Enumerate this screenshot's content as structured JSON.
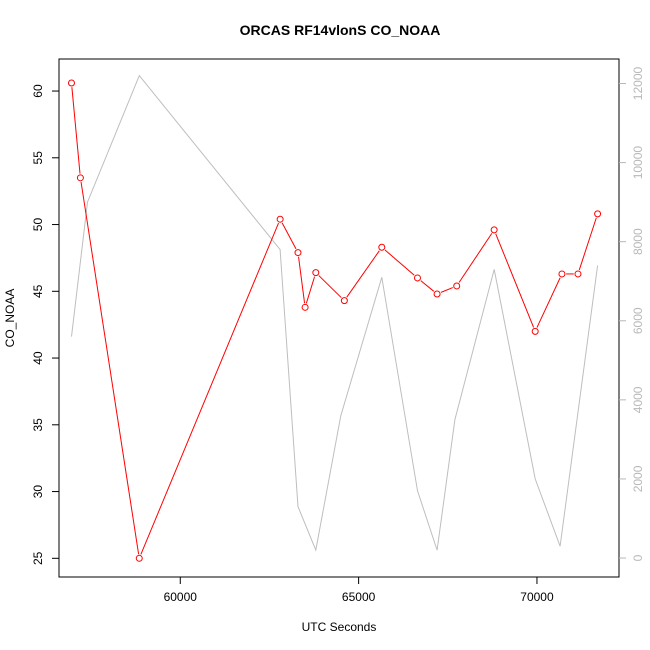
{
  "chart_data": {
    "type": "line",
    "title": "ORCAS RF14vlonS CO_NOAA",
    "xlabel": "UTC Seconds",
    "ylabel": "CO_NOAA",
    "xlim": [
      56600,
      72300
    ],
    "ylim": [
      23.6,
      62.4
    ],
    "y2lim": [
      -480,
      12620
    ],
    "x_ticks": [
      60000,
      65000,
      70000
    ],
    "y_ticks": [
      25,
      30,
      35,
      40,
      45,
      50,
      55,
      60
    ],
    "y2_ticks": [
      0,
      2000,
      4000,
      6000,
      8000,
      10000,
      12000
    ],
    "colors": {
      "primary": "#ff0000",
      "secondary": "#bebebe"
    },
    "series": [
      {
        "axis": "left",
        "style": "line-with-open-circles",
        "x": [
          56950,
          57200,
          58850,
          62800,
          63300,
          63500,
          63800,
          64600,
          65650,
          66650,
          67200,
          67750,
          68800,
          69950,
          70700,
          71150,
          71700
        ],
        "y": [
          60.6,
          53.5,
          25.0,
          50.4,
          47.9,
          43.8,
          46.4,
          44.3,
          48.3,
          46.0,
          44.8,
          45.4,
          49.6,
          42.0,
          46.3,
          46.3,
          50.8
        ]
      },
      {
        "axis": "right",
        "style": "line",
        "x": [
          56950,
          57400,
          58850,
          62800,
          63300,
          63800,
          64500,
          65650,
          66650,
          67200,
          67700,
          68800,
          69950,
          70650,
          71700
        ],
        "y": [
          5600,
          9000,
          12200,
          7800,
          1300,
          200,
          3600,
          7100,
          1700,
          200,
          3500,
          7300,
          2000,
          300,
          7400
        ]
      }
    ]
  }
}
